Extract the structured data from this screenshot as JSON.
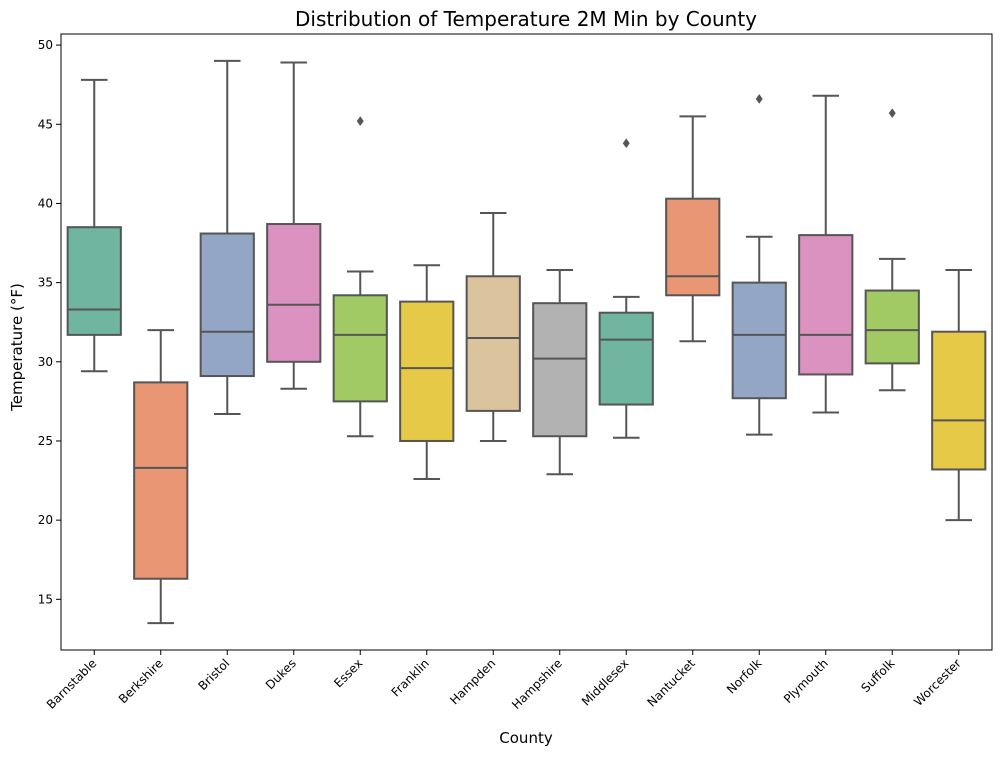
{
  "chart_data": {
    "type": "box",
    "title": "Distribution of Temperature 2M Min by County",
    "xlabel": "County",
    "ylabel": "Temperature (°F)",
    "ylim": [
      11.8,
      50.7
    ],
    "yticks": [
      15,
      20,
      25,
      30,
      35,
      40,
      45,
      50
    ],
    "grid": false,
    "legend": "none",
    "categories": [
      "Barnstable",
      "Berkshire",
      "Bristol",
      "Dukes",
      "Essex",
      "Franklin",
      "Hampden",
      "Hampshire",
      "Middlesex",
      "Nantucket",
      "Norfolk",
      "Plymouth",
      "Suffolk",
      "Worcester"
    ],
    "boxes": [
      {
        "category": "Barnstable",
        "whisker_low": 29.4,
        "q1": 31.7,
        "median": 33.3,
        "q3": 38.5,
        "whisker_high": 47.8,
        "outliers": [],
        "color": "#6fb5a0"
      },
      {
        "category": "Berkshire",
        "whisker_low": 13.5,
        "q1": 16.3,
        "median": 23.3,
        "q3": 28.7,
        "whisker_high": 32.0,
        "outliers": [],
        "color": "#e99675"
      },
      {
        "category": "Bristol",
        "whisker_low": 26.7,
        "q1": 29.1,
        "median": 31.9,
        "q3": 38.1,
        "whisker_high": 49.0,
        "outliers": [],
        "color": "#93a6c6"
      },
      {
        "category": "Dukes",
        "whisker_low": 28.3,
        "q1": 30.0,
        "median": 33.6,
        "q3": 38.7,
        "whisker_high": 48.9,
        "outliers": [],
        "color": "#dc92c1"
      },
      {
        "category": "Essex",
        "whisker_low": 25.3,
        "q1": 27.5,
        "median": 31.7,
        "q3": 34.2,
        "whisker_high": 35.7,
        "outliers": [
          45.2
        ],
        "color": "#a1c964"
      },
      {
        "category": "Franklin",
        "whisker_low": 22.6,
        "q1": 25.0,
        "median": 29.6,
        "q3": 33.8,
        "whisker_high": 36.1,
        "outliers": [],
        "color": "#e6ca47"
      },
      {
        "category": "Hampden",
        "whisker_low": 25.0,
        "q1": 26.9,
        "median": 31.5,
        "q3": 35.4,
        "whisker_high": 39.4,
        "outliers": [],
        "color": "#dbc39e"
      },
      {
        "category": "Hampshire",
        "whisker_low": 22.9,
        "q1": 25.3,
        "median": 30.2,
        "q3": 33.7,
        "whisker_high": 35.8,
        "outliers": [],
        "color": "#b2b2b2"
      },
      {
        "category": "Middlesex",
        "whisker_low": 25.2,
        "q1": 27.3,
        "median": 31.4,
        "q3": 33.1,
        "whisker_high": 34.1,
        "outliers": [
          43.8
        ],
        "color": "#6fb5a0"
      },
      {
        "category": "Nantucket",
        "whisker_low": 31.3,
        "q1": 34.2,
        "median": 35.4,
        "q3": 40.3,
        "whisker_high": 45.5,
        "outliers": [],
        "color": "#e99675"
      },
      {
        "category": "Norfolk",
        "whisker_low": 25.4,
        "q1": 27.7,
        "median": 31.7,
        "q3": 35.0,
        "whisker_high": 37.9,
        "outliers": [
          46.6
        ],
        "color": "#93a6c6"
      },
      {
        "category": "Plymouth",
        "whisker_low": 26.8,
        "q1": 29.2,
        "median": 31.7,
        "q3": 38.0,
        "whisker_high": 46.8,
        "outliers": [],
        "color": "#dc92c1"
      },
      {
        "category": "Suffolk",
        "whisker_low": 28.2,
        "q1": 29.9,
        "median": 32.0,
        "q3": 34.5,
        "whisker_high": 36.5,
        "outliers": [
          45.7
        ],
        "color": "#a1c964"
      },
      {
        "category": "Worcester",
        "whisker_low": 20.0,
        "q1": 23.2,
        "median": 26.3,
        "q3": 31.9,
        "whisker_high": 35.8,
        "outliers": [],
        "color": "#e6ca47"
      }
    ]
  }
}
